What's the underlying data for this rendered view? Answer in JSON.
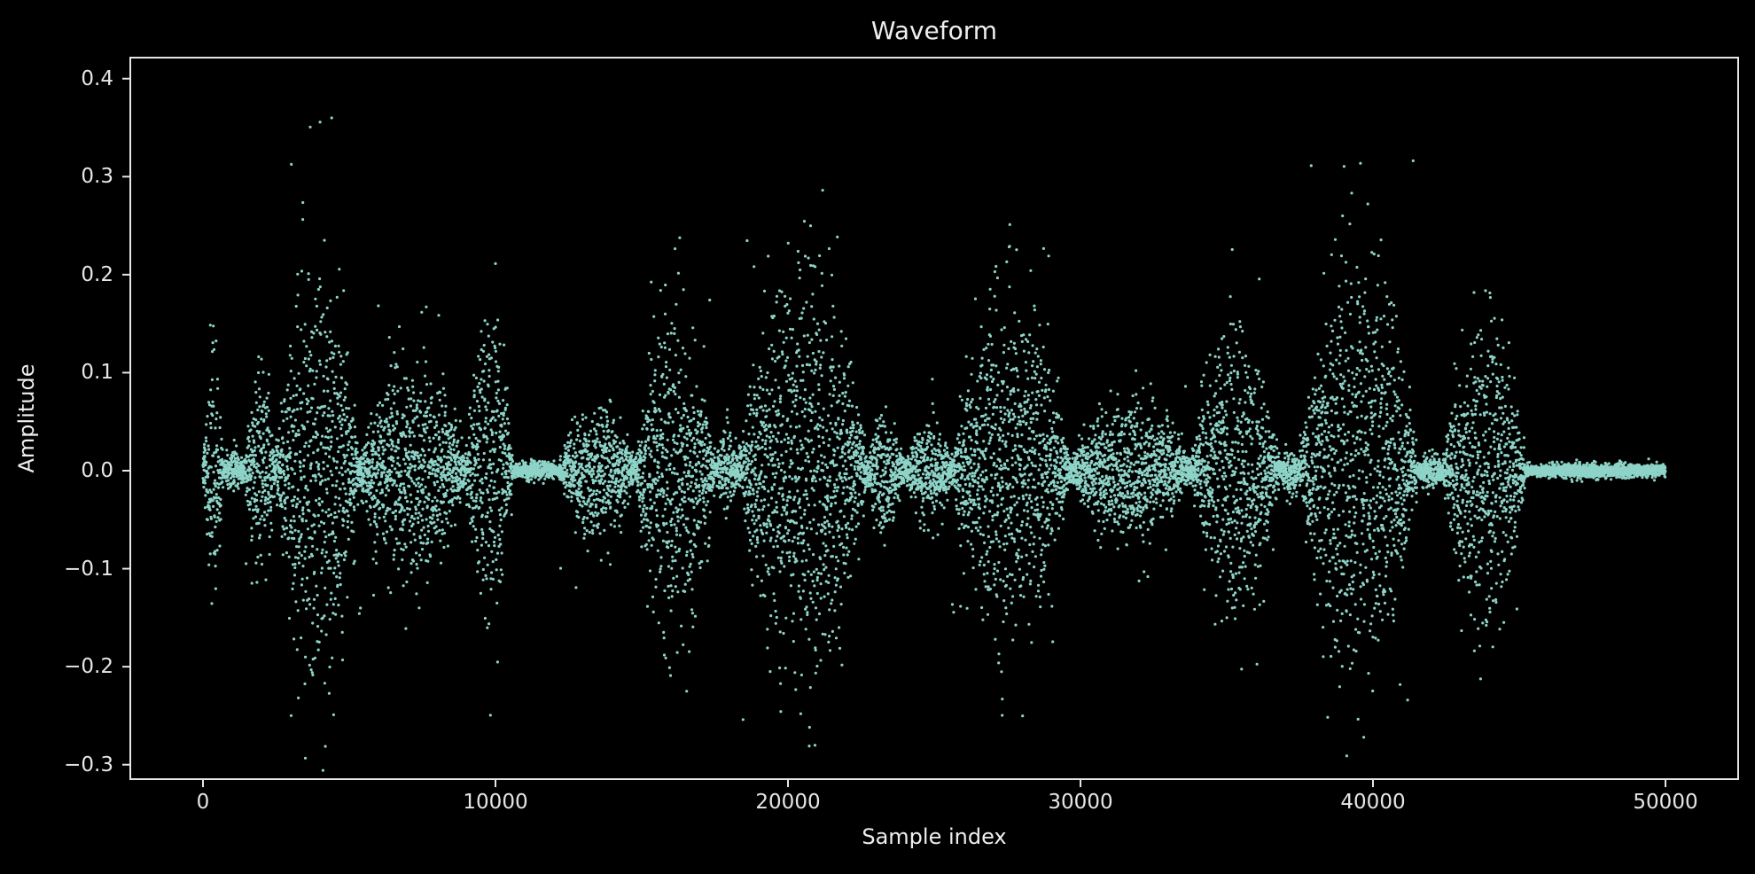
{
  "chart_data": {
    "type": "scatter",
    "title": "Waveform",
    "xlabel": "Sample index",
    "ylabel": "Amplitude",
    "xlim": [
      -2500,
      52500
    ],
    "ylim": [
      -0.317,
      0.423
    ],
    "xticks": [
      0,
      10000,
      20000,
      30000,
      40000,
      50000
    ],
    "xtick_labels": [
      "0",
      "10000",
      "20000",
      "30000",
      "40000",
      "50000"
    ],
    "yticks": [
      0.4,
      0.3,
      0.2,
      0.1,
      0.0,
      -0.1,
      -0.2,
      -0.3
    ],
    "ytick_labels": [
      "0.4",
      "0.3",
      "0.2",
      "0.1",
      "0.0",
      "−0.1",
      "−0.2",
      "−0.3"
    ],
    "grid": false,
    "legend": null,
    "style": "dark_background",
    "marker_color": "#8dd3c7",
    "marker_size_px": 3.2,
    "n_points_approx": 50000,
    "x_range_data": [
      0,
      50000
    ],
    "envelope_description": "Speech-like audio waveform: bursts of high amplitude separated by near-silent gaps; values clustered densely around 0.0",
    "segments": [
      {
        "start": 0,
        "end": 700,
        "amp": 0.085,
        "peak_max": 0.12,
        "peak_min": -0.165
      },
      {
        "start": 700,
        "end": 1400,
        "amp": 0.012
      },
      {
        "start": 1400,
        "end": 2500,
        "amp": 0.065,
        "peak_max": 0.12,
        "peak_min": -0.125
      },
      {
        "start": 2500,
        "end": 5300,
        "amp": 0.17,
        "peak_max": 0.388,
        "peak_min": -0.282
      },
      {
        "start": 5300,
        "end": 9000,
        "amp": 0.085,
        "peak_max": 0.185,
        "peak_min": -0.16
      },
      {
        "start": 9000,
        "end": 10600,
        "amp": 0.13,
        "peak_max": 0.285,
        "peak_min": -0.222
      },
      {
        "start": 10600,
        "end": 12200,
        "amp": 0.004
      },
      {
        "start": 12200,
        "end": 14800,
        "amp": 0.05,
        "peak_max": 0.07,
        "peak_min": -0.125
      },
      {
        "start": 14800,
        "end": 17500,
        "amp": 0.13,
        "peak_max": 0.195,
        "peak_min": -0.21
      },
      {
        "start": 17500,
        "end": 18300,
        "amp": 0.03
      },
      {
        "start": 18300,
        "end": 22700,
        "amp": 0.16,
        "peak_max": 0.258,
        "peak_min": -0.262
      },
      {
        "start": 22700,
        "end": 24000,
        "amp": 0.04
      },
      {
        "start": 24000,
        "end": 25600,
        "amp": 0.035,
        "peak_max": 0.108,
        "peak_min": -0.07
      },
      {
        "start": 25600,
        "end": 29600,
        "amp": 0.13,
        "peak_max": 0.248,
        "peak_min": -0.175
      },
      {
        "start": 29600,
        "end": 33800,
        "amp": 0.05,
        "peak_max": 0.09,
        "peak_min": -0.1
      },
      {
        "start": 33800,
        "end": 36800,
        "amp": 0.11,
        "peak_max": 0.292,
        "peak_min": -0.162
      },
      {
        "start": 36800,
        "end": 37500,
        "amp": 0.015
      },
      {
        "start": 37500,
        "end": 41500,
        "amp": 0.16,
        "peak_max": 0.33,
        "peak_min": -0.265
      },
      {
        "start": 41500,
        "end": 42400,
        "amp": 0.01
      },
      {
        "start": 42400,
        "end": 45200,
        "amp": 0.12,
        "peak_max": 0.215,
        "peak_min": -0.175
      },
      {
        "start": 45200,
        "end": 50000,
        "amp": 0.002
      }
    ]
  }
}
